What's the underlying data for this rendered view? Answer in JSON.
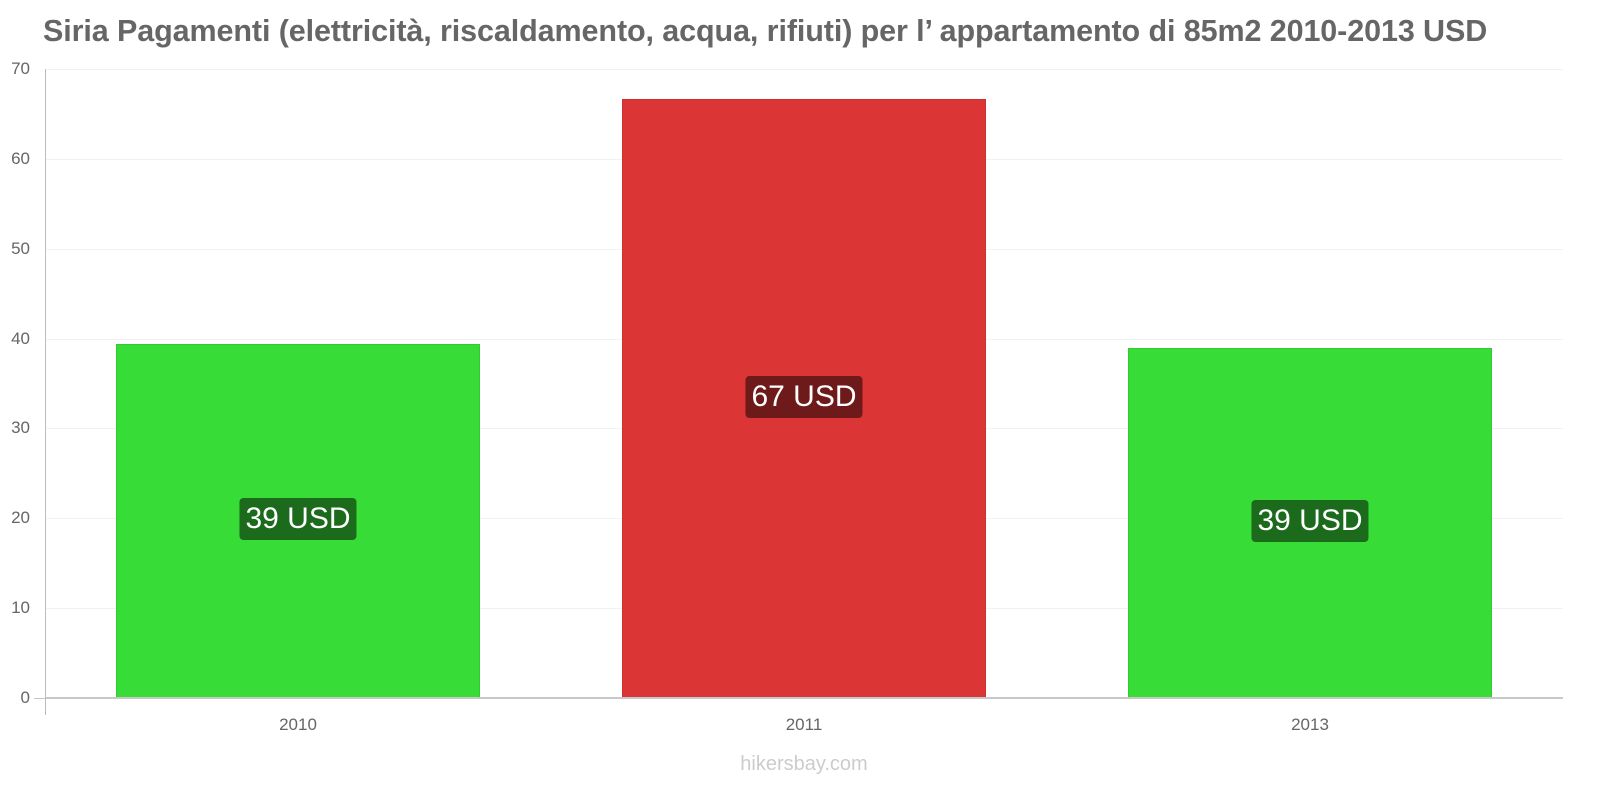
{
  "header": {
    "title": "Siria Pagamenti (elettricità, riscaldamento, acqua, rifiuti) per l’ appartamento di 85m2 2010-2013 USD"
  },
  "footer": {
    "watermark": "hikersbay.com"
  },
  "colors": {
    "increase_bar": "#37dc37",
    "increase_label_bg": "#1c6b1c",
    "decrease_bar": "#dc3535",
    "decrease_label_bg": "#6e1a1a",
    "axis_text": "#666666",
    "gridline": "#f2f2f2"
  },
  "chart_data": {
    "type": "bar",
    "title": "Siria Pagamenti (elettricità, riscaldamento, acqua, rifiuti) per l’ appartamento di 85m2 2010-2013 USD",
    "xlabel": "",
    "ylabel": "",
    "categories": [
      "2010",
      "2011",
      "2013"
    ],
    "values": [
      39.4,
      66.7,
      39.0
    ],
    "data_labels": [
      "39 USD",
      "67 USD",
      "39 USD"
    ],
    "bar_colors": [
      "#37dc37",
      "#dc3535",
      "#37dc37"
    ],
    "label_bg_colors": [
      "#1c6b1c",
      "#6e1a1a",
      "#1c6b1c"
    ],
    "yticks": [
      0,
      10,
      20,
      30,
      40,
      50,
      60,
      70
    ],
    "ylim": [
      0,
      70
    ],
    "grid": true,
    "legend": null,
    "unit": "USD"
  }
}
